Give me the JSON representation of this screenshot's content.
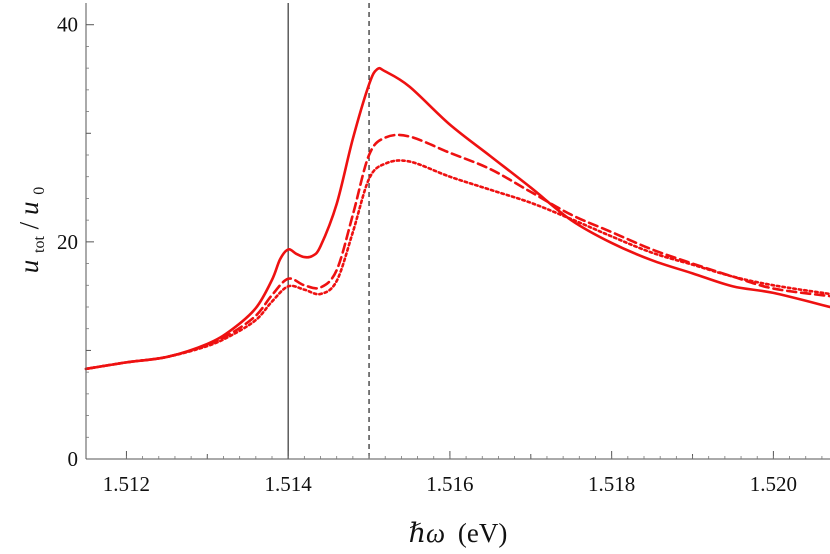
{
  "chart_data": {
    "type": "line",
    "title": "",
    "xlabel": {
      "main": "ℏω",
      "unit": "(eV)"
    },
    "ylabel": {
      "numerator": "u",
      "numerator_sub": "tot",
      "slash": "/",
      "denominator": "u",
      "denominator_sub": "0"
    },
    "xlim": [
      1.5115,
      1.5207
    ],
    "ylim": [
      0,
      42
    ],
    "x_ticks": [
      1.512,
      1.513,
      1.514,
      1.515,
      1.516,
      1.517,
      1.518,
      1.519,
      1.52
    ],
    "x_tick_labels": [
      "1.512",
      "",
      "1.514",
      "",
      "1.516",
      "",
      "1.518",
      "",
      "1.520"
    ],
    "y_ticks": [
      0,
      10,
      20,
      30,
      40
    ],
    "y_tick_labels": [
      "0",
      "",
      "20",
      "",
      "40"
    ],
    "grid": false,
    "vertical_lines": [
      {
        "x": 1.514,
        "style": "solid",
        "color": "#333333"
      },
      {
        "x": 1.515,
        "style": "dashed",
        "color": "#222222"
      }
    ],
    "series": [
      {
        "style": "solid",
        "color": "#ee1111",
        "x": [
          1.5115,
          1.512,
          1.5125,
          1.513,
          1.5133,
          1.5136,
          1.5138,
          1.5139,
          1.514,
          1.5141,
          1.5142,
          1.5143,
          1.5144,
          1.5146,
          1.5148,
          1.515,
          1.5151,
          1.5152,
          1.5155,
          1.516,
          1.5165,
          1.517,
          1.5175,
          1.518,
          1.5185,
          1.519,
          1.5195,
          1.52,
          1.5207
        ],
        "y": [
          8.3,
          8.9,
          9.4,
          10.6,
          11.9,
          13.9,
          16.5,
          18.4,
          19.3,
          18.9,
          18.6,
          18.7,
          19.6,
          23.5,
          29.5,
          34.5,
          35.9,
          35.7,
          34.3,
          30.8,
          27.9,
          25.0,
          22.0,
          19.9,
          18.3,
          17.1,
          15.9,
          15.3,
          14.0
        ]
      },
      {
        "style": "dashed",
        "color": "#ee1111",
        "x": [
          1.5115,
          1.512,
          1.5125,
          1.513,
          1.5133,
          1.5136,
          1.5138,
          1.514,
          1.5142,
          1.5144,
          1.5146,
          1.5148,
          1.515,
          1.5152,
          1.5155,
          1.516,
          1.5165,
          1.517,
          1.5175,
          1.518,
          1.5185,
          1.519,
          1.5195,
          1.52,
          1.5207
        ],
        "y": [
          8.3,
          8.9,
          9.4,
          10.5,
          11.6,
          13.2,
          15.1,
          16.6,
          16.0,
          15.8,
          17.4,
          22.5,
          28.0,
          29.6,
          29.7,
          28.2,
          26.7,
          24.6,
          22.5,
          20.9,
          19.3,
          18.0,
          16.8,
          15.7,
          15.0
        ]
      },
      {
        "style": "dotted",
        "color": "#ee1111",
        "x": [
          1.5115,
          1.512,
          1.5125,
          1.513,
          1.5133,
          1.5136,
          1.5138,
          1.514,
          1.5142,
          1.5144,
          1.5146,
          1.5148,
          1.515,
          1.5152,
          1.5155,
          1.516,
          1.5165,
          1.517,
          1.5175,
          1.518,
          1.5185,
          1.519,
          1.5195,
          1.52,
          1.5207
        ],
        "y": [
          8.3,
          8.9,
          9.4,
          10.4,
          11.4,
          12.8,
          14.5,
          15.9,
          15.6,
          15.2,
          16.4,
          20.9,
          25.8,
          27.2,
          27.4,
          26.0,
          24.8,
          23.6,
          22.1,
          20.5,
          19.0,
          17.9,
          16.8,
          16.0,
          15.2
        ]
      }
    ]
  }
}
